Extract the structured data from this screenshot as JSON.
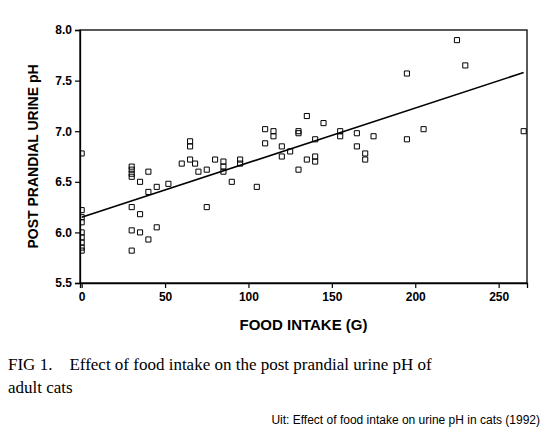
{
  "chart_data": {
    "type": "scatter",
    "caption": [
      "FIG 1.    Effect of food intake on the post prandial urine pH of",
      "adult cats"
    ],
    "source": "Uit: Effect of food intake on urine pH in cats (1992)",
    "x_label": "FOOD INTAKE (G)",
    "y_label": "POST PRANDIAL URINE pH",
    "xlim": [
      -1,
      267
    ],
    "ylim": [
      5.5,
      8.0
    ],
    "xticks": [
      0,
      50,
      100,
      150,
      200,
      250
    ],
    "yticks": [
      5.5,
      {
        "value": 6,
        "label": "6.0"
      },
      6.5,
      {
        "value": 7,
        "label": "7.0"
      },
      7.5,
      {
        "value": 8,
        "label": "8.0"
      }
    ],
    "grid": false,
    "series": [
      {
        "type": "scatter",
        "color": "#000000",
        "marker": "square",
        "x": [
          0,
          0,
          0,
          0,
          0,
          0,
          0,
          0,
          0,
          30,
          30,
          30,
          30,
          30,
          30,
          30,
          35,
          35,
          35,
          40,
          40,
          40,
          45,
          45,
          52,
          60,
          65,
          65,
          65,
          68,
          70,
          75,
          75,
          80,
          85,
          85,
          85,
          90,
          95,
          95,
          105,
          110,
          110,
          115,
          115,
          120,
          120,
          125,
          130,
          130,
          130,
          135,
          135,
          140,
          140,
          140,
          145,
          155,
          155,
          165,
          165,
          170,
          170,
          175,
          195,
          195,
          205,
          225,
          230,
          265
        ],
        "values": [
          6.78,
          6.22,
          6.15,
          6.1,
          6.0,
          5.95,
          5.9,
          5.85,
          5.82,
          6.65,
          6.62,
          6.58,
          6.55,
          6.25,
          6.02,
          5.82,
          6.5,
          6.18,
          6.0,
          6.6,
          6.4,
          5.93,
          6.45,
          6.05,
          6.48,
          6.68,
          6.9,
          6.85,
          6.72,
          6.68,
          6.6,
          6.25,
          6.62,
          6.72,
          6.7,
          6.65,
          6.6,
          6.5,
          6.72,
          6.68,
          6.45,
          7.02,
          6.88,
          7.0,
          6.95,
          6.75,
          6.85,
          6.8,
          6.98,
          7.0,
          6.62,
          7.15,
          6.72,
          6.92,
          6.75,
          6.7,
          7.08,
          7.0,
          6.95,
          6.85,
          6.98,
          6.78,
          6.72,
          6.95,
          7.57,
          6.92,
          7.02,
          7.9,
          7.65,
          7.0
        ]
      },
      {
        "type": "line",
        "color": "#000000",
        "line_style": "solid",
        "x": [
          0,
          265
        ],
        "values": [
          6.15,
          7.58
        ]
      }
    ]
  }
}
